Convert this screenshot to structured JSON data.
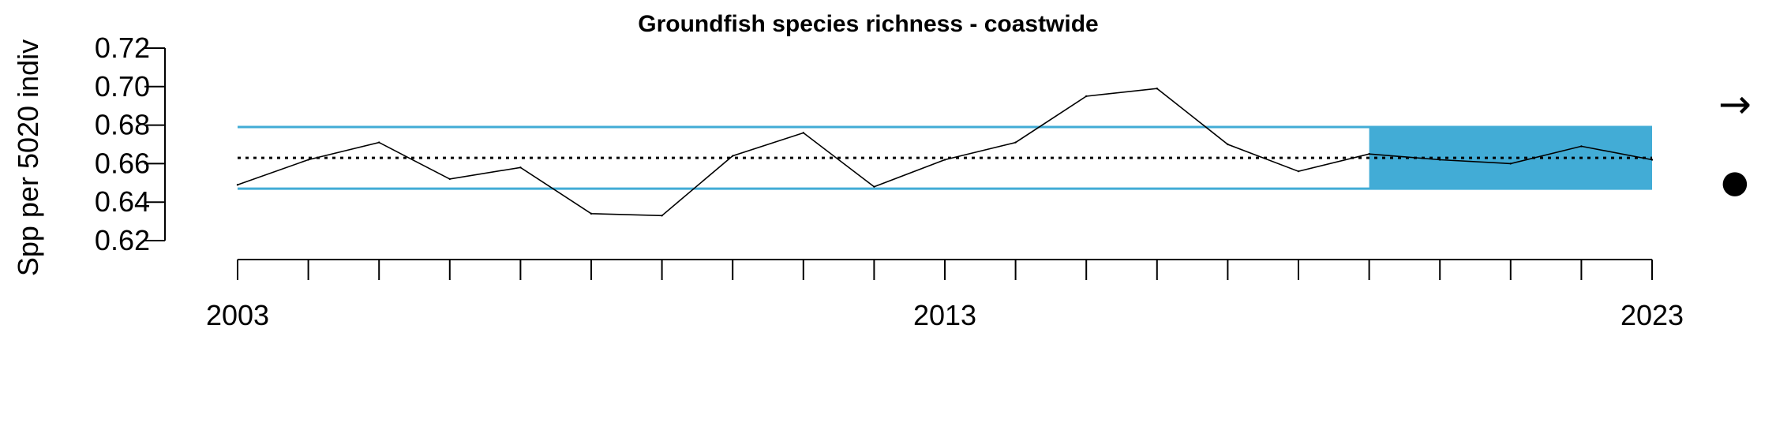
{
  "chart_data": {
    "type": "line",
    "title": "Groundfish species richness - coastwide",
    "xlabel": "",
    "ylabel": "Spp per 5020 indiv",
    "x": [
      2003,
      2004,
      2005,
      2006,
      2007,
      2008,
      2009,
      2010,
      2011,
      2012,
      2013,
      2014,
      2015,
      2016,
      2017,
      2018,
      2019,
      2020,
      2021,
      2022,
      2023
    ],
    "series": [
      {
        "values": [
          0.649,
          0.662,
          0.671,
          0.652,
          0.658,
          0.634,
          0.633,
          0.664,
          0.676,
          0.648,
          0.662,
          0.671,
          0.695,
          0.699,
          0.67,
          0.656,
          0.665,
          0.662,
          0.66,
          0.669,
          0.662
        ]
      }
    ],
    "mean": 0.663,
    "sd_upper": 0.679,
    "sd_lower": 0.647,
    "highlight_x_range": [
      2019,
      2023
    ],
    "xlim": [
      2003,
      2023
    ],
    "ylim": [
      0.62,
      0.72
    ],
    "x_tick_labels": [
      "2003",
      "2013",
      "2023"
    ],
    "y_tick_labels": [
      "0.62",
      "0.64",
      "0.66",
      "0.68",
      "0.70",
      "0.72"
    ],
    "trend_symbol": "→",
    "mean_symbol": "●",
    "colors": {
      "line": "#000000",
      "band": "#42acd6",
      "sd_line": "#42acd6",
      "mean_line": "#000000"
    },
    "grid": false,
    "legend": "none"
  }
}
